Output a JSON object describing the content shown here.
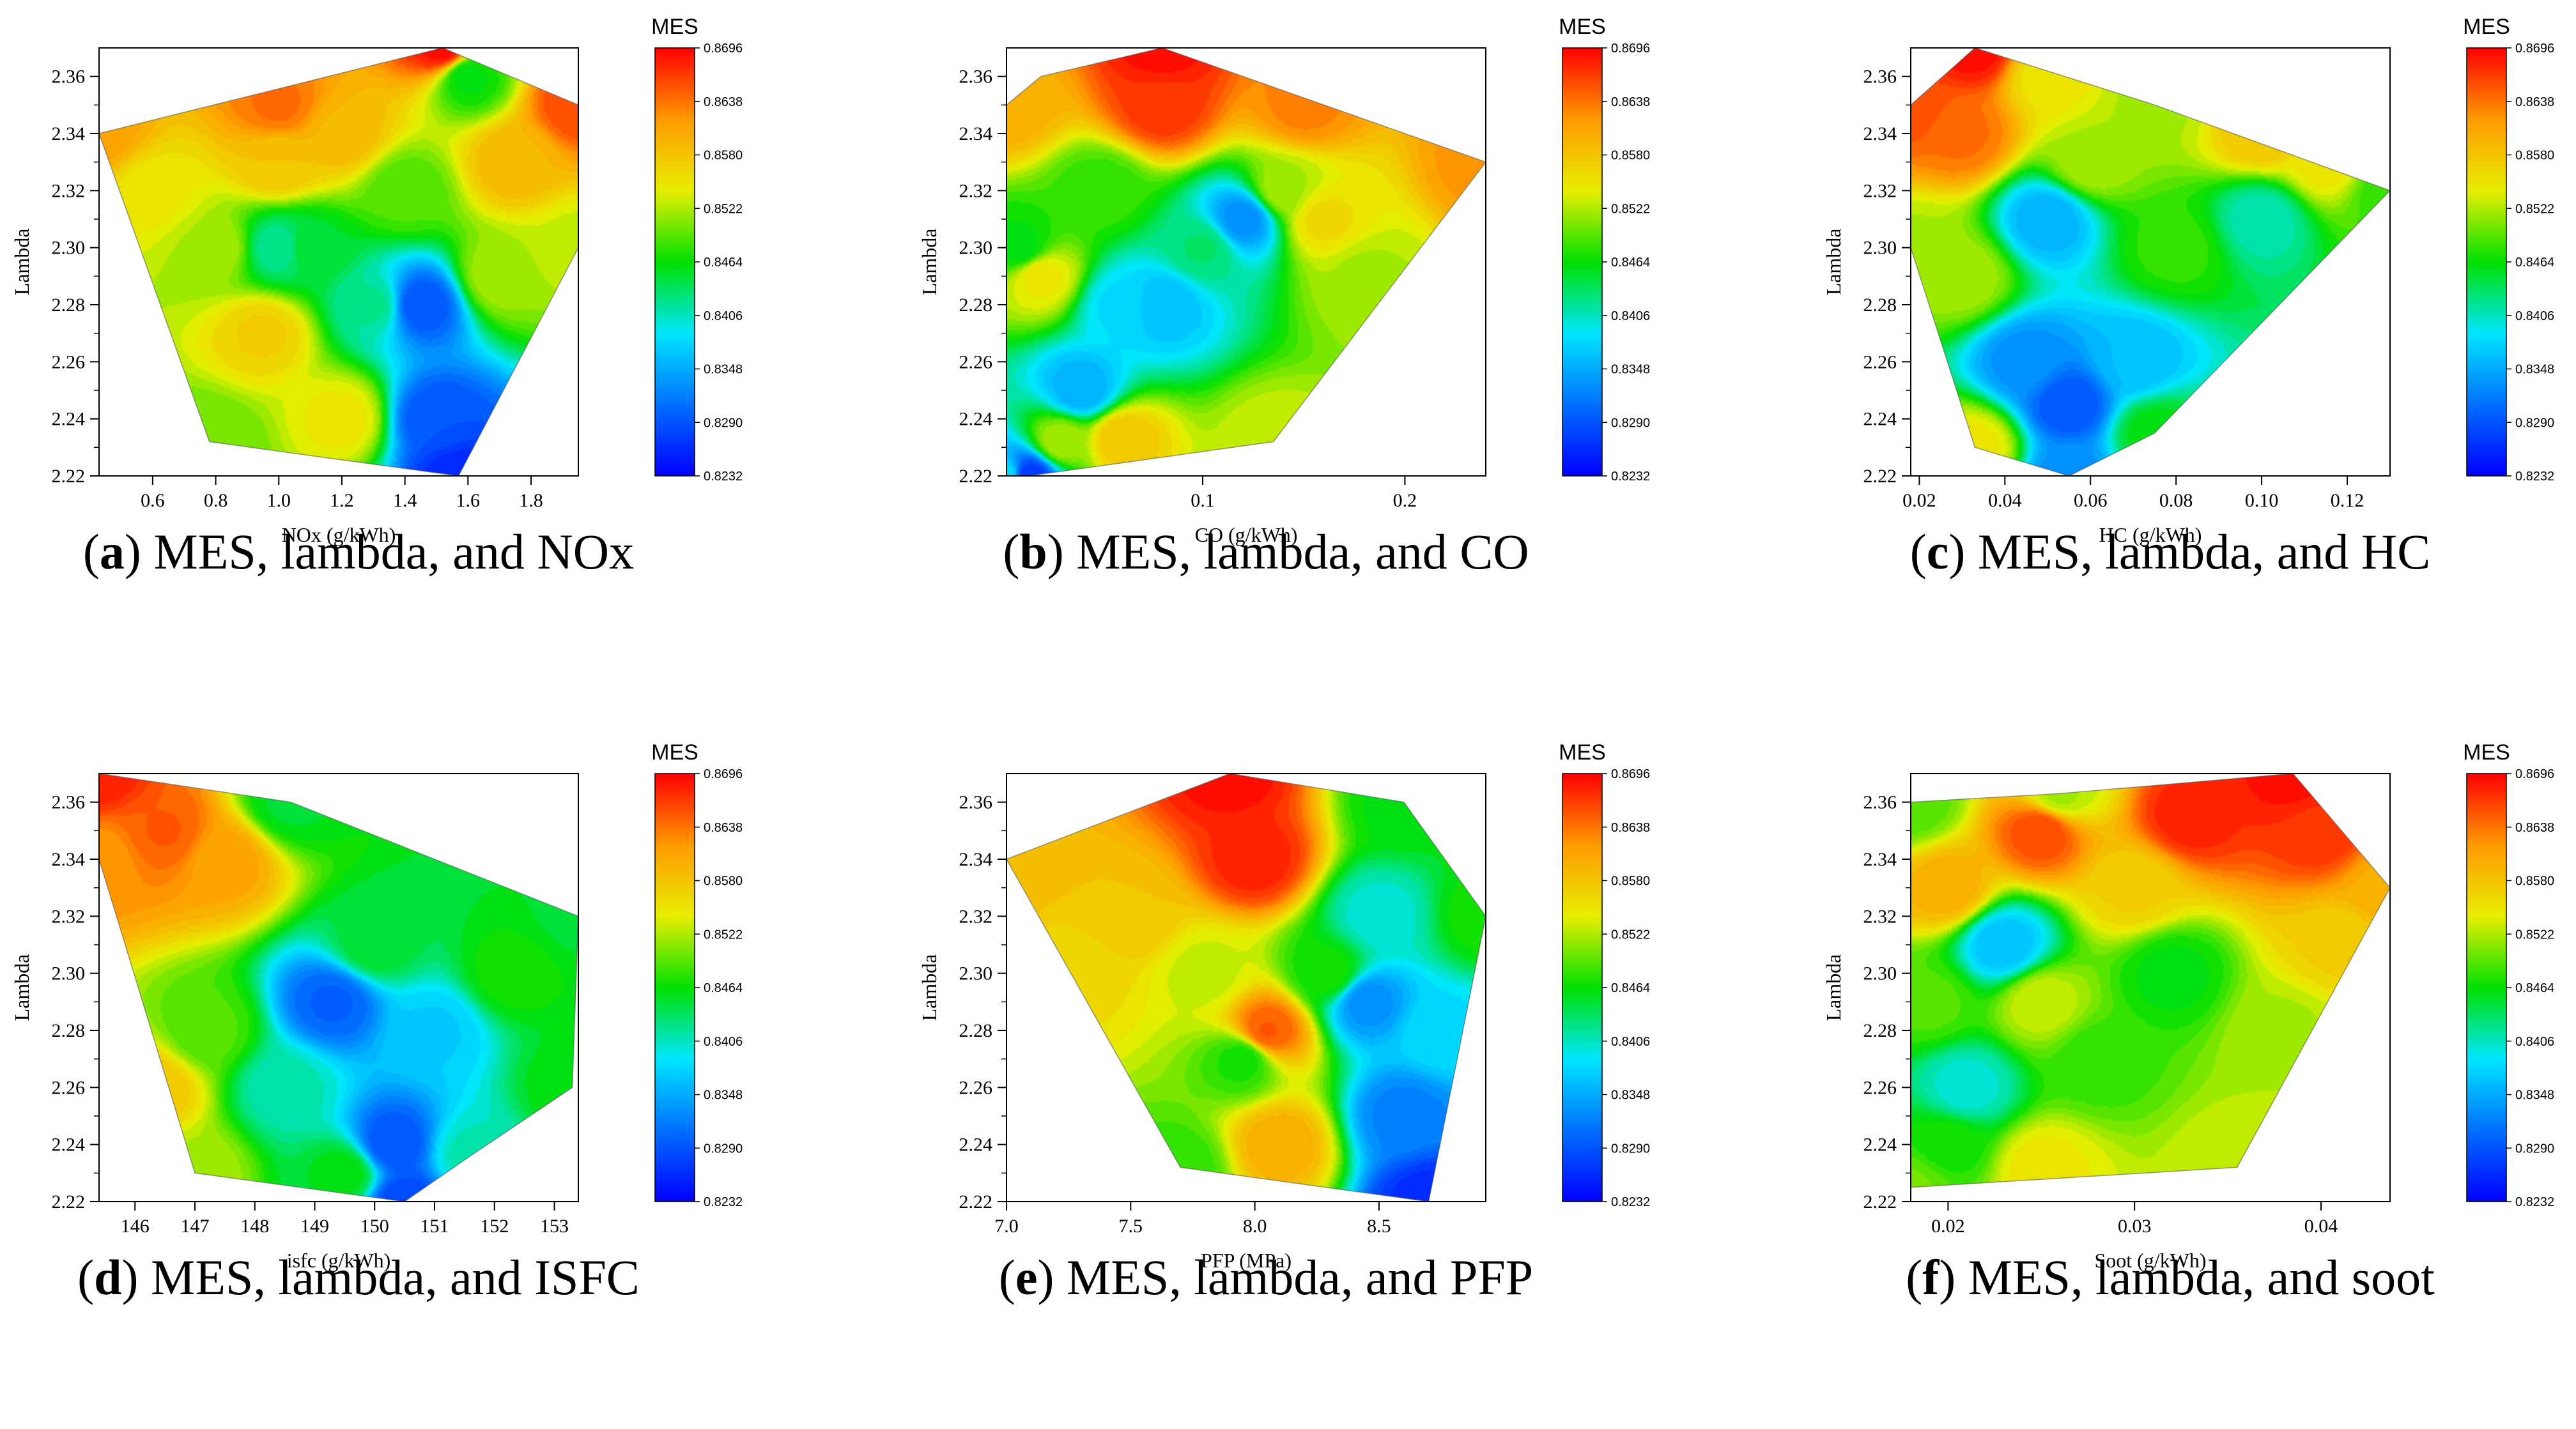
{
  "colorbar": {
    "title": "MES",
    "ticks": [
      "0.8696",
      "0.8638",
      "0.8580",
      "0.8522",
      "0.8464",
      "0.8406",
      "0.8348",
      "0.8290",
      "0.8232"
    ],
    "min": 0.8232,
    "max": 0.8696,
    "palette": [
      "#0000ff",
      "#0070ff",
      "#00e6ff",
      "#00e000",
      "#e8ee00",
      "#ff9a00",
      "#ff0000"
    ]
  },
  "chart_data": [
    {
      "type": "heatmap",
      "title": "MES, lambda, and NOx",
      "caption_letter": "a",
      "caption_text": "MES, lambda, and NOx",
      "xlabel": "NOx (g/kWh)",
      "ylabel": "Lambda",
      "xlim": [
        0.43,
        1.95
      ],
      "ylim": [
        2.22,
        2.37
      ],
      "xticks": [
        "0.6",
        "0.8",
        "1.0",
        "1.2",
        "1.4",
        "1.6",
        "1.8"
      ],
      "xtick_values": [
        0.6,
        0.8,
        1.0,
        1.2,
        1.4,
        1.6,
        1.8
      ],
      "yticks": [
        "2.22",
        "2.24",
        "2.26",
        "2.28",
        "2.30",
        "2.32",
        "2.34",
        "2.36"
      ],
      "ytick_values": [
        2.22,
        2.24,
        2.26,
        2.28,
        2.3,
        2.32,
        2.34,
        2.36
      ],
      "hull": [
        [
          0.43,
          2.34
        ],
        [
          1.52,
          2.37
        ],
        [
          1.95,
          2.35
        ],
        [
          1.95,
          2.3
        ],
        [
          1.57,
          2.22
        ],
        [
          0.78,
          2.232
        ]
      ],
      "points": [
        [
          0.43,
          2.34,
          0.861
        ],
        [
          1.0,
          2.35,
          0.864
        ],
        [
          1.52,
          2.37,
          0.869
        ],
        [
          1.95,
          2.35,
          0.866
        ],
        [
          1.6,
          2.36,
          0.846
        ],
        [
          1.95,
          2.3,
          0.853
        ],
        [
          1.57,
          2.22,
          0.826
        ],
        [
          0.78,
          2.232,
          0.85
        ],
        [
          0.8,
          2.3,
          0.852
        ],
        [
          1.0,
          2.33,
          0.858
        ],
        [
          0.95,
          2.27,
          0.857
        ],
        [
          1.0,
          2.3,
          0.842
        ],
        [
          1.1,
          2.3,
          0.845
        ],
        [
          1.2,
          2.24,
          0.855
        ],
        [
          1.3,
          2.28,
          0.842
        ],
        [
          1.45,
          2.28,
          0.829
        ],
        [
          1.5,
          2.24,
          0.829
        ],
        [
          1.7,
          2.29,
          0.852
        ],
        [
          1.4,
          2.32,
          0.849
        ],
        [
          0.6,
          2.32,
          0.855
        ],
        [
          1.2,
          2.34,
          0.859
        ],
        [
          1.75,
          2.33,
          0.859
        ]
      ]
    },
    {
      "type": "heatmap",
      "title": "MES, lambda, and CO",
      "caption_letter": "b",
      "caption_text": "MES, lambda, and CO",
      "xlabel": "CO (g/kWh)",
      "ylabel": "Lambda",
      "xlim": [
        0.003,
        0.24
      ],
      "ylim": [
        2.22,
        2.37
      ],
      "xticks": [
        "0.1",
        "0.2"
      ],
      "xtick_values": [
        0.1,
        0.2
      ],
      "yticks": [
        "2.22",
        "2.24",
        "2.26",
        "2.28",
        "2.30",
        "2.32",
        "2.34",
        "2.36"
      ],
      "ytick_values": [
        2.22,
        2.24,
        2.26,
        2.28,
        2.3,
        2.32,
        2.34,
        2.36
      ],
      "hull": [
        [
          0.003,
          2.35
        ],
        [
          0.02,
          2.36
        ],
        [
          0.08,
          2.37
        ],
        [
          0.24,
          2.33
        ],
        [
          0.135,
          2.232
        ],
        [
          0.014,
          2.22
        ],
        [
          0.003,
          2.22
        ]
      ],
      "points": [
        [
          0.003,
          2.35,
          0.86
        ],
        [
          0.08,
          2.37,
          0.869
        ],
        [
          0.08,
          2.35,
          0.867
        ],
        [
          0.24,
          2.33,
          0.862
        ],
        [
          0.135,
          2.232,
          0.853
        ],
        [
          0.014,
          2.22,
          0.827
        ],
        [
          0.003,
          2.22,
          0.838
        ],
        [
          0.01,
          2.3,
          0.846
        ],
        [
          0.02,
          2.29,
          0.855
        ],
        [
          0.04,
          2.25,
          0.835
        ],
        [
          0.08,
          2.28,
          0.836
        ],
        [
          0.06,
          2.28,
          0.838
        ],
        [
          0.1,
          2.3,
          0.843
        ],
        [
          0.12,
          2.31,
          0.833
        ],
        [
          0.14,
          2.32,
          0.852
        ],
        [
          0.18,
          2.29,
          0.852
        ],
        [
          0.03,
          2.232,
          0.852
        ],
        [
          0.06,
          2.233,
          0.858
        ],
        [
          0.16,
          2.31,
          0.856
        ],
        [
          0.05,
          2.32,
          0.848
        ],
        [
          0.15,
          2.35,
          0.863
        ]
      ]
    },
    {
      "type": "heatmap",
      "title": "MES, lambda, and HC",
      "caption_letter": "c",
      "caption_text": "MES, lambda, and HC",
      "xlabel": "HC (g/kWh)",
      "ylabel": "Lambda",
      "xlim": [
        0.018,
        0.13
      ],
      "ylim": [
        2.22,
        2.37
      ],
      "xticks": [
        "0.02",
        "0.04",
        "0.06",
        "0.08",
        "0.10",
        "0.12"
      ],
      "xtick_values": [
        0.02,
        0.04,
        0.06,
        0.08,
        0.1,
        0.12
      ],
      "yticks": [
        "2.22",
        "2.24",
        "2.26",
        "2.28",
        "2.30",
        "2.32",
        "2.34",
        "2.36"
      ],
      "ytick_values": [
        2.22,
        2.24,
        2.26,
        2.28,
        2.3,
        2.32,
        2.34,
        2.36
      ],
      "hull": [
        [
          0.018,
          2.35
        ],
        [
          0.033,
          2.37
        ],
        [
          0.075,
          2.35
        ],
        [
          0.13,
          2.32
        ],
        [
          0.075,
          2.235
        ],
        [
          0.055,
          2.22
        ],
        [
          0.033,
          2.23
        ],
        [
          0.018,
          2.3
        ]
      ],
      "points": [
        [
          0.018,
          2.35,
          0.866
        ],
        [
          0.033,
          2.37,
          0.869
        ],
        [
          0.05,
          2.36,
          0.855
        ],
        [
          0.075,
          2.35,
          0.852
        ],
        [
          0.13,
          2.32,
          0.848
        ],
        [
          0.075,
          2.235,
          0.846
        ],
        [
          0.055,
          2.22,
          0.833
        ],
        [
          0.033,
          2.23,
          0.855
        ],
        [
          0.018,
          2.3,
          0.852
        ],
        [
          0.03,
          2.34,
          0.864
        ],
        [
          0.05,
          2.31,
          0.835
        ],
        [
          0.055,
          2.245,
          0.829
        ],
        [
          0.045,
          2.26,
          0.833
        ],
        [
          0.07,
          2.26,
          0.836
        ],
        [
          0.1,
          2.31,
          0.841
        ],
        [
          0.1,
          2.34,
          0.858
        ],
        [
          0.06,
          2.33,
          0.852
        ],
        [
          0.08,
          2.3,
          0.848
        ],
        [
          0.03,
          2.29,
          0.852
        ],
        [
          0.115,
          2.33,
          0.855
        ]
      ]
    },
    {
      "type": "heatmap",
      "title": "MES, lambda, and ISFC",
      "caption_letter": "d",
      "caption_text": "MES, lambda, and ISFC",
      "xlabel": "isfc (g/kWh)",
      "ylabel": "Lambda",
      "xlim": [
        145.4,
        153.4
      ],
      "ylim": [
        2.22,
        2.37
      ],
      "xticks": [
        "146",
        "147",
        "148",
        "149",
        "150",
        "151",
        "152",
        "153"
      ],
      "xtick_values": [
        146,
        147,
        148,
        149,
        150,
        151,
        152,
        153
      ],
      "yticks": [
        "2.22",
        "2.24",
        "2.26",
        "2.28",
        "2.30",
        "2.32",
        "2.34",
        "2.36"
      ],
      "ytick_values": [
        2.22,
        2.24,
        2.26,
        2.28,
        2.3,
        2.32,
        2.34,
        2.36
      ],
      "hull": [
        [
          145.4,
          2.37
        ],
        [
          148.6,
          2.36
        ],
        [
          153.4,
          2.32
        ],
        [
          153.3,
          2.26
        ],
        [
          151.6,
          2.236
        ],
        [
          150.5,
          2.22
        ],
        [
          147.0,
          2.23
        ],
        [
          145.4,
          2.34
        ]
      ],
      "points": [
        [
          145.4,
          2.37,
          0.868
        ],
        [
          148.6,
          2.36,
          0.845
        ],
        [
          153.4,
          2.32,
          0.845
        ],
        [
          153.3,
          2.26,
          0.846
        ],
        [
          151.6,
          2.236,
          0.841
        ],
        [
          150.5,
          2.22,
          0.828
        ],
        [
          147.0,
          2.23,
          0.852
        ],
        [
          145.4,
          2.34,
          0.862
        ],
        [
          146.5,
          2.35,
          0.865
        ],
        [
          147.5,
          2.34,
          0.861
        ],
        [
          147.2,
          2.28,
          0.849
        ],
        [
          148.5,
          2.26,
          0.841
        ],
        [
          149.3,
          2.29,
          0.83
        ],
        [
          150.3,
          2.24,
          0.829
        ],
        [
          151.0,
          2.28,
          0.837
        ],
        [
          152.3,
          2.3,
          0.847
        ],
        [
          150.0,
          2.31,
          0.845
        ],
        [
          146.3,
          2.26,
          0.858
        ],
        [
          149.5,
          2.23,
          0.846
        ]
      ]
    },
    {
      "type": "heatmap",
      "title": "MES, lambda, and PFP",
      "caption_letter": "e",
      "caption_text": "MES, lambda, and PFP",
      "xlabel": "PFP (MPa)",
      "ylabel": "Lambda",
      "xlim": [
        7.0,
        8.93
      ],
      "ylim": [
        2.22,
        2.37
      ],
      "xticks": [
        "7.0",
        "7.5",
        "8.0",
        "8.5"
      ],
      "xtick_values": [
        7.0,
        7.5,
        8.0,
        8.5
      ],
      "yticks": [
        "2.22",
        "2.24",
        "2.26",
        "2.28",
        "2.30",
        "2.32",
        "2.34",
        "2.36"
      ],
      "ytick_values": [
        2.22,
        2.24,
        2.26,
        2.28,
        2.3,
        2.32,
        2.34,
        2.36
      ],
      "hull": [
        [
          7.0,
          2.34
        ],
        [
          7.9,
          2.37
        ],
        [
          8.6,
          2.36
        ],
        [
          8.93,
          2.32
        ],
        [
          8.7,
          2.22
        ],
        [
          7.7,
          2.232
        ]
      ],
      "points": [
        [
          7.0,
          2.34,
          0.859
        ],
        [
          7.9,
          2.37,
          0.869
        ],
        [
          8.6,
          2.36,
          0.846
        ],
        [
          8.93,
          2.32,
          0.847
        ],
        [
          8.7,
          2.22,
          0.826
        ],
        [
          7.7,
          2.232,
          0.848
        ],
        [
          7.5,
          2.32,
          0.858
        ],
        [
          8.0,
          2.34,
          0.868
        ],
        [
          8.05,
          2.28,
          0.865
        ],
        [
          8.1,
          2.24,
          0.86
        ],
        [
          7.95,
          2.27,
          0.847
        ],
        [
          8.3,
          2.3,
          0.847
        ],
        [
          8.45,
          2.29,
          0.833
        ],
        [
          8.5,
          2.32,
          0.84
        ],
        [
          8.6,
          2.25,
          0.832
        ],
        [
          7.8,
          2.3,
          0.853
        ],
        [
          7.3,
          2.3,
          0.856
        ],
        [
          8.75,
          2.28,
          0.838
        ]
      ]
    },
    {
      "type": "heatmap",
      "title": "MES, lambda, and soot",
      "caption_letter": "f",
      "caption_text": "MES, lambda, and soot",
      "xlabel": "Soot (g/kWh)",
      "ylabel": "Lambda",
      "xlim": [
        0.018,
        0.0437
      ],
      "ylim": [
        2.22,
        2.37
      ],
      "xticks": [
        "0.02",
        "0.03",
        "0.04"
      ],
      "xtick_values": [
        0.02,
        0.03,
        0.04
      ],
      "yticks": [
        "2.22",
        "2.24",
        "2.26",
        "2.28",
        "2.30",
        "2.32",
        "2.34",
        "2.36"
      ],
      "ytick_values": [
        2.22,
        2.24,
        2.26,
        2.28,
        2.3,
        2.32,
        2.34,
        2.36
      ],
      "hull": [
        [
          0.018,
          2.36
        ],
        [
          0.026,
          2.363
        ],
        [
          0.0385,
          2.37
        ],
        [
          0.0437,
          2.33
        ],
        [
          0.0355,
          2.232
        ],
        [
          0.018,
          2.225
        ]
      ],
      "points": [
        [
          0.018,
          2.36,
          0.849
        ],
        [
          0.026,
          2.363,
          0.852
        ],
        [
          0.0385,
          2.37,
          0.869
        ],
        [
          0.0437,
          2.33,
          0.86
        ],
        [
          0.0355,
          2.232,
          0.853
        ],
        [
          0.018,
          2.225,
          0.85
        ],
        [
          0.025,
          2.35,
          0.866
        ],
        [
          0.033,
          2.355,
          0.868
        ],
        [
          0.04,
          2.35,
          0.867
        ],
        [
          0.02,
          2.33,
          0.86
        ],
        [
          0.023,
          2.31,
          0.836
        ],
        [
          0.021,
          2.26,
          0.84
        ],
        [
          0.019,
          2.29,
          0.849
        ],
        [
          0.025,
          2.29,
          0.853
        ],
        [
          0.028,
          2.27,
          0.848
        ],
        [
          0.032,
          2.3,
          0.846
        ],
        [
          0.038,
          2.28,
          0.852
        ],
        [
          0.041,
          2.31,
          0.857
        ],
        [
          0.025,
          2.232,
          0.855
        ],
        [
          0.03,
          2.33,
          0.857
        ],
        [
          0.02,
          2.24,
          0.847
        ]
      ]
    }
  ]
}
